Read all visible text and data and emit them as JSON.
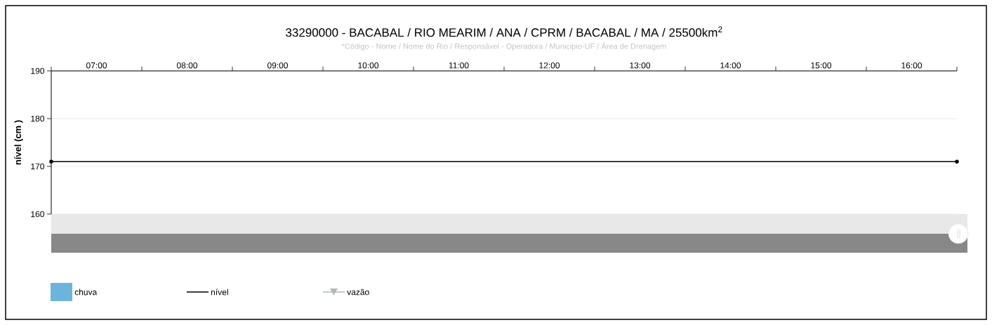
{
  "chart_data": {
    "type": "line",
    "title": "33290000 - BACABAL / RIO MEARIM / ANA / CPRM / BACABAL / MA / 25500km$^{2}$",
    "subtitle": "*Código - Nome / Nome do Rio / Responsável - Operadora / Municipio-UF / Área de Drenagem",
    "ylabel": "nível (cm )",
    "x": [
      6.5,
      16.5
    ],
    "series": [
      {
        "name": "chuva",
        "type": "bar",
        "color": "#6cb4dc",
        "values": [
          null,
          null
        ]
      },
      {
        "name": "nível",
        "color": "#000000",
        "marker": "circle",
        "values": [
          171,
          171
        ]
      },
      {
        "name": "vazão",
        "color": "#b0b8b8",
        "marker": "triangle",
        "values": [
          null,
          null
        ]
      }
    ],
    "xlim": [
      6.5,
      16.5
    ],
    "xticks": [
      {
        "value": 6.5,
        "label": null
      },
      {
        "value": 7,
        "label": "07:00"
      },
      {
        "value": 7.5,
        "label": null
      },
      {
        "value": 8,
        "label": "08:00"
      },
      {
        "value": 8.5,
        "label": null
      },
      {
        "value": 9,
        "label": "09:00"
      },
      {
        "value": 9.5,
        "label": null
      },
      {
        "value": 10,
        "label": "10:00"
      },
      {
        "value": 10.5,
        "label": null
      },
      {
        "value": 11,
        "label": "11:00"
      },
      {
        "value": 11.5,
        "label": null
      },
      {
        "value": 12,
        "label": "12:00"
      },
      {
        "value": 12.5,
        "label": null
      },
      {
        "value": 13,
        "label": "13:00"
      },
      {
        "value": 13.5,
        "label": null
      },
      {
        "value": 14,
        "label": "14:00"
      },
      {
        "value": 14.5,
        "label": null
      },
      {
        "value": 15,
        "label": "15:00"
      },
      {
        "value": 15.5,
        "label": null
      },
      {
        "value": 16,
        "label": "16:00"
      },
      {
        "value": 16.5,
        "label": null
      }
    ],
    "ylim": [
      160,
      190
    ],
    "yticks": [
      160,
      170,
      180,
      190
    ],
    "grid": "y",
    "legend": "bottom"
  }
}
